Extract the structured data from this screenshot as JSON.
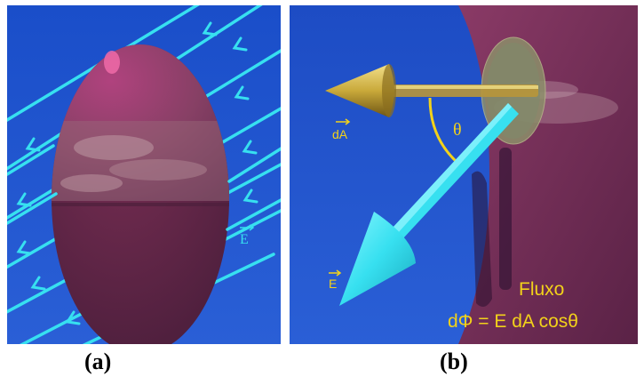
{
  "panel_a": {
    "label_field": "E",
    "caption": "(a)"
  },
  "panel_b": {
    "label_area": "dA",
    "label_field": "E",
    "label_angle": "θ",
    "flux_title": "Fluxo",
    "flux_formula": "dΦ = E dA cosθ",
    "caption": "(b)"
  },
  "colors": {
    "background_blue": "#1f4fc8",
    "surface_maroon": "#7a2a55",
    "field_cyan": "#37e0f0",
    "label_yellow": "#f2d21a",
    "arrow_gold": "#c9a93a"
  }
}
